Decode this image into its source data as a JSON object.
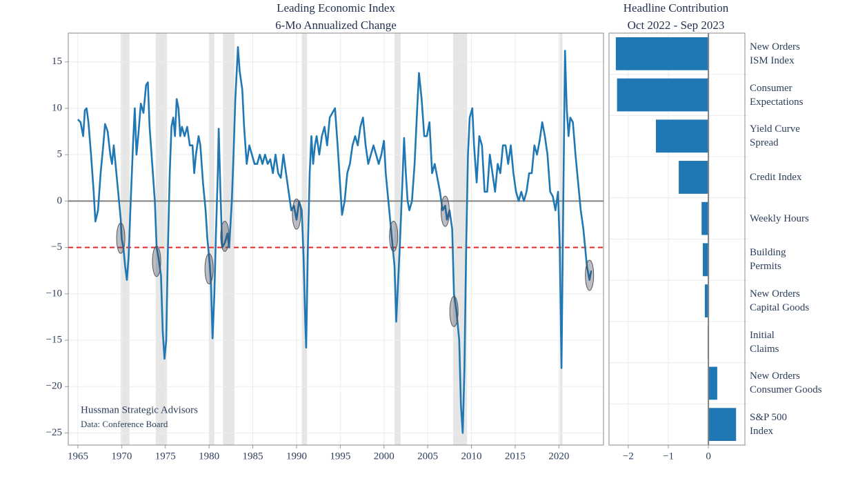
{
  "chart_data": [
    {
      "type": "line",
      "title": "Leading Economic Index",
      "subtitle": "6-Mo Annualized Change",
      "color": "#1f77b4",
      "x": [
        1965.0,
        1965.3,
        1965.6,
        1965.8,
        1966.0,
        1966.2,
        1966.5,
        1966.8,
        1967.0,
        1967.3,
        1967.6,
        1967.9,
        1968.1,
        1968.4,
        1968.7,
        1968.9,
        1969.1,
        1969.3,
        1969.6,
        1969.9,
        1970.0,
        1970.2,
        1970.4,
        1970.6,
        1970.8,
        1971.0,
        1971.3,
        1971.5,
        1971.7,
        1971.9,
        1972.2,
        1972.5,
        1972.8,
        1973.0,
        1973.2,
        1973.5,
        1973.8,
        1974.0,
        1974.2,
        1974.5,
        1974.7,
        1974.9,
        1975.1,
        1975.3,
        1975.5,
        1975.7,
        1975.9,
        1976.1,
        1976.3,
        1976.5,
        1976.7,
        1976.9,
        1977.2,
        1977.5,
        1977.8,
        1978.1,
        1978.3,
        1978.5,
        1978.8,
        1979.0,
        1979.3,
        1979.6,
        1979.8,
        1980.0,
        1980.2,
        1980.4,
        1980.6,
        1980.8,
        1981.0,
        1981.1,
        1981.3,
        1981.5,
        1981.8,
        1982.1,
        1982.3,
        1982.6,
        1982.8,
        1983.0,
        1983.3,
        1983.5,
        1983.8,
        1984.0,
        1984.3,
        1984.6,
        1984.9,
        1985.2,
        1985.5,
        1985.8,
        1986.1,
        1986.4,
        1986.7,
        1987.0,
        1987.3,
        1987.6,
        1987.9,
        1988.2,
        1988.5,
        1988.8,
        1989.1,
        1989.4,
        1989.7,
        1990.0,
        1990.3,
        1990.6,
        1990.8,
        1991.0,
        1991.1,
        1991.3,
        1991.5,
        1991.7,
        1991.9,
        1992.1,
        1992.3,
        1992.6,
        1992.9,
        1993.2,
        1993.5,
        1993.8,
        1994.1,
        1994.4,
        1994.7,
        1994.9,
        1995.2,
        1995.5,
        1995.8,
        1996.1,
        1996.4,
        1996.7,
        1997.0,
        1997.3,
        1997.6,
        1997.9,
        1998.2,
        1998.5,
        1998.8,
        1999.1,
        1999.4,
        1999.7,
        2000.0,
        2000.2,
        2000.5,
        2000.8,
        2001.0,
        2001.2,
        2001.4,
        2001.6,
        2001.8,
        2002.1,
        2002.3,
        2002.5,
        2002.7,
        2002.9,
        2003.2,
        2003.5,
        2003.8,
        2004.0,
        2004.3,
        2004.6,
        2004.9,
        2005.2,
        2005.5,
        2005.8,
        2006.1,
        2006.4,
        2006.7,
        2007.0,
        2007.2,
        2007.5,
        2007.8,
        2008.0,
        2008.3,
        2008.6,
        2008.8,
        2009.0,
        2009.2,
        2009.4,
        2009.6,
        2009.8,
        2010.1,
        2010.3,
        2010.6,
        2010.9,
        2011.2,
        2011.5,
        2011.8,
        2012.1,
        2012.4,
        2012.7,
        2013.0,
        2013.3,
        2013.6,
        2013.9,
        2014.2,
        2014.5,
        2014.8,
        2015.1,
        2015.4,
        2015.7,
        2016.0,
        2016.3,
        2016.6,
        2016.9,
        2017.2,
        2017.5,
        2017.8,
        2018.1,
        2018.4,
        2018.7,
        2019.0,
        2019.3,
        2019.6,
        2019.9,
        2020.1,
        2020.3,
        2020.5,
        2020.7,
        2020.9,
        2021.1,
        2021.3,
        2021.6,
        2021.9,
        2022.2,
        2022.5,
        2022.8,
        2023.0,
        2023.2,
        2023.5,
        2023.7
      ],
      "values": [
        8.8,
        8.5,
        7,
        9.8,
        10,
        8.5,
        5,
        1,
        -2.2,
        -1,
        3,
        6,
        8.3,
        7.5,
        5,
        4,
        6,
        4,
        1,
        -2,
        -4,
        -5,
        -7,
        -8.5,
        -6,
        -1,
        6,
        10,
        5,
        7,
        10.5,
        9.5,
        12.5,
        12.8,
        8,
        4,
        0,
        -5,
        -6,
        -8,
        -14,
        -17,
        -15,
        -5,
        3,
        8,
        9,
        7,
        11,
        10,
        7,
        8,
        7,
        8,
        6,
        6,
        3,
        5,
        7,
        6,
        2,
        -1,
        -4,
        -6,
        -8.5,
        -14.8,
        -10,
        -3,
        3,
        7.8,
        1,
        -5,
        -4.5,
        -3.5,
        -5,
        0,
        5,
        11,
        16.6,
        14,
        12,
        8,
        4,
        6,
        5,
        4,
        4,
        5,
        4,
        5,
        4,
        4.5,
        3,
        5,
        3,
        2.5,
        5,
        3,
        1,
        -1,
        -0.5,
        -2,
        0,
        -1,
        -6,
        -13,
        -15.8,
        -5,
        3,
        7,
        4,
        6,
        7,
        5,
        7,
        8,
        6,
        9,
        9.5,
        10,
        6,
        3,
        -1.5,
        0,
        3,
        4,
        6,
        7,
        6,
        8,
        9,
        6,
        4,
        5,
        6,
        5,
        4,
        5,
        6.5,
        3,
        0,
        -3,
        -5,
        -7,
        -13,
        -9,
        -5,
        2,
        6.8,
        3,
        0,
        -1,
        0,
        4,
        10,
        13.8,
        11,
        7,
        7,
        8.5,
        3,
        4,
        2.5,
        1,
        -1,
        -0.5,
        -2,
        -1,
        -3,
        -10,
        -12,
        -15,
        -22,
        -25,
        -18,
        -5,
        5,
        9,
        10,
        6,
        2,
        7,
        6,
        1,
        1,
        5,
        3,
        1,
        4,
        3,
        6,
        6,
        4,
        6,
        3,
        1,
        0,
        1,
        0,
        1,
        3,
        3,
        6,
        5,
        6.5,
        8.5,
        7,
        5,
        1,
        0.5,
        -1,
        1,
        -5,
        -18,
        0,
        16.2,
        10,
        7,
        9,
        8.5,
        5,
        2,
        -1,
        -3,
        -5,
        -7,
        -8.5,
        -7.5
      ],
      "xlim": [
        1963.9,
        2025.1
      ],
      "ylim": [
        -26.3,
        18.1
      ],
      "xticks": [
        1965,
        1970,
        1975,
        1980,
        1985,
        1990,
        1995,
        2000,
        2005,
        2010,
        2015,
        2020
      ],
      "yticks": [
        {
          "value": -25,
          "label": "−25"
        },
        {
          "value": -20,
          "label": "−20"
        },
        {
          "value": -15,
          "label": "−15"
        },
        {
          "value": -10,
          "label": "−10"
        },
        {
          "value": -5,
          "label": "−5"
        },
        0,
        5,
        10,
        15
      ],
      "grid": true,
      "shaded_periods": [
        [
          1969.9,
          1970.9
        ],
        [
          1973.9,
          1975.2
        ],
        [
          1980.0,
          1980.6
        ],
        [
          1981.6,
          1982.9
        ],
        [
          1990.6,
          1991.2
        ],
        [
          2001.2,
          2001.9
        ],
        [
          2007.9,
          2009.5
        ],
        [
          2020.1,
          2020.4
        ]
      ],
      "reference_lines": [
        {
          "y": 0,
          "color": "#808080",
          "style": "solid"
        },
        {
          "y": -5,
          "color": "#e8262a",
          "style": "dashed"
        }
      ],
      "highlights": [
        {
          "x": 1969.9,
          "y": -4
        },
        {
          "x": 1974.0,
          "y": -6.5
        },
        {
          "x": 1980.0,
          "y": -7.3
        },
        {
          "x": 1981.8,
          "y": -3.8
        },
        {
          "x": 1990.0,
          "y": -1.4
        },
        {
          "x": 2001.1,
          "y": -3.8
        },
        {
          "x": 2007.0,
          "y": -1.1
        },
        {
          "x": 2008.0,
          "y": -11.9
        },
        {
          "x": 2023.5,
          "y": -8.0
        }
      ],
      "annotations": [
        {
          "text": "Hussman Strategic Advisors",
          "color": "#1f77b4"
        },
        {
          "text": "Data: Conference Board",
          "color": "#000000"
        }
      ]
    },
    {
      "type": "barh",
      "title": "Headline Contribution",
      "subtitle": "Oct 2022 - Sep 2023",
      "color": "#1f77b4",
      "categories": [
        "New Orders\nISM Index",
        "Consumer\nExpectations",
        "Yield Curve\nSpread",
        "Credit Index",
        "Weekly Hours",
        "Building\nPermits",
        "New Orders\nCapital Goods",
        "Initial\nClaims",
        "New Orders\nConsumer Goods",
        "S&P 500\nIndex"
      ],
      "values": [
        -2.31,
        -2.28,
        -1.31,
        -0.74,
        -0.17,
        -0.14,
        -0.09,
        -0.02,
        0.22,
        0.69
      ],
      "xlim": [
        -2.48,
        0.91
      ],
      "xticks": [
        {
          "value": -2,
          "label": "−2"
        },
        {
          "value": -1,
          "label": "−1"
        },
        0
      ],
      "grid": true,
      "reference_lines": [
        {
          "x": 0,
          "color": "#808080",
          "style": "solid"
        }
      ]
    }
  ]
}
